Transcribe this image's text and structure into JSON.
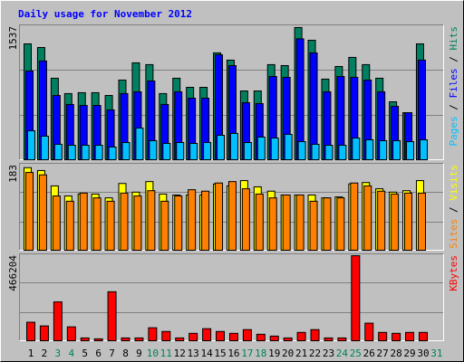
{
  "title": "Daily usage for November 2012",
  "chart_data": [
    {
      "type": "bar",
      "ylim": [
        0,
        1537
      ],
      "yticks": [
        1537
      ],
      "series": [
        {
          "name": "Hits",
          "color": "#008060",
          "values": [
            1322,
            1281,
            933,
            759,
            769,
            769,
            738,
            912,
            1107,
            1087,
            759,
            933,
            830,
            830,
            1220,
            1138,
            789,
            789,
            1087,
            1076,
            1507,
            1363,
            923,
            1066,
            1169,
            1087,
            933,
            666,
            543,
            1322,
            null
          ]
        },
        {
          "name": "Files",
          "color": "#0000ff",
          "values": [
            1015,
            1128,
            738,
            636,
            625,
            625,
            574,
            759,
            779,
            902,
            636,
            779,
            707,
            707,
            1199,
            1076,
            656,
            646,
            953,
            943,
            1379,
            1220,
            779,
            953,
            943,
            912,
            779,
            615,
            543,
            1138,
            null
          ]
        },
        {
          "name": "Pages",
          "color": "#00c0ff",
          "values": [
            338,
            277,
            185,
            174,
            174,
            174,
            154,
            205,
            369,
            226,
            195,
            205,
            195,
            205,
            287,
            308,
            205,
            267,
            256,
            297,
            215,
            185,
            174,
            174,
            256,
            236,
            226,
            226,
            215,
            236,
            null
          ]
        }
      ]
    },
    {
      "type": "bar",
      "ylim": [
        0,
        183
      ],
      "yticks": [
        183
      ],
      "series": [
        {
          "name": "Visits",
          "color": "#ffff00",
          "values": [
            174,
            168,
            136,
            115,
            119,
            119,
            111,
            141,
            123,
            145,
            119,
            117,
            117,
            117,
            140,
            136,
            147,
            134,
            125,
            117,
            117,
            117,
            111,
            113,
            140,
            143,
            130,
            123,
            126,
            147,
            null
          ]
        },
        {
          "name": "Sites",
          "color": "#ff8000",
          "values": [
            164,
            159,
            115,
            104,
            121,
            111,
            104,
            121,
            115,
            126,
            104,
            115,
            128,
            125,
            142,
            145,
            130,
            119,
            111,
            117,
            117,
            104,
            111,
            111,
            142,
            136,
            125,
            119,
            121,
            121,
            null
          ]
        }
      ]
    },
    {
      "type": "bar",
      "ylim": [
        0,
        466204
      ],
      "yticks": [
        466204
      ],
      "categories": [
        "1",
        "2",
        "3",
        "4",
        "5",
        "6",
        "7",
        "8",
        "9",
        "10",
        "11",
        "12",
        "13",
        "14",
        "15",
        "16",
        "17",
        "18",
        "19",
        "20",
        "21",
        "22",
        "23",
        "24",
        "25",
        "26",
        "27",
        "28",
        "29",
        "30",
        "31"
      ],
      "category_colors": [
        "#000000",
        "#000000",
        "#00805c",
        "#00805c",
        "#000000",
        "#000000",
        "#000000",
        "#000000",
        "#000000",
        "#00805c",
        "#00805c",
        "#000000",
        "#000000",
        "#000000",
        "#000000",
        "#000000",
        "#00805c",
        "#00805c",
        "#000000",
        "#000000",
        "#000000",
        "#000000",
        "#000000",
        "#00805c",
        "#00805c",
        "#000000",
        "#000000",
        "#000000",
        "#000000",
        "#000000",
        "#00805c"
      ],
      "series": [
        {
          "name": "KBytes",
          "color": "#ff0000",
          "values": [
            103047,
            83419,
            211001,
            78512,
            19628,
            14721,
            264978,
            19628,
            19628,
            73605,
            53977,
            19628,
            44163,
            68698,
            53977,
            44163,
            63791,
            39256,
            29442,
            19628,
            49070,
            63791,
            19628,
            19628,
            456351,
            98140,
            49070,
            44163,
            49070,
            49070,
            null
          ]
        }
      ]
    }
  ]
}
